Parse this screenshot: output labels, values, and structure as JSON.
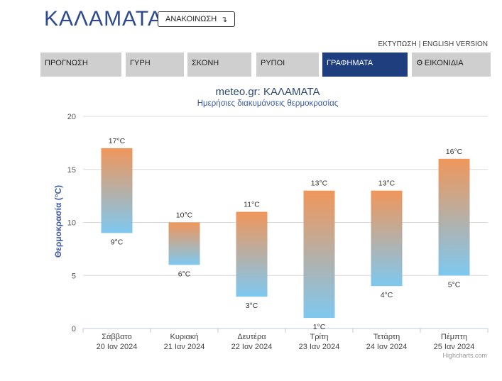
{
  "header": {
    "city": "ΚΑΛΑΜΑΤΑ",
    "announce_label": "ΑΝΑΚΟΙΝΩΣΗ",
    "announce_icon": "arrow-return-icon"
  },
  "top_links": {
    "print": "ΕΚΤΥΠΩΣΗ",
    "separator": "|",
    "english": "ENGLISH VERSION"
  },
  "nav": {
    "tabs": [
      {
        "label": "ΠΡΟΓΝΩΣΗ",
        "active": false
      },
      {
        "label": "ΓΥΡΗ",
        "active": false
      },
      {
        "label": "ΣΚΟΝΗ",
        "active": false
      },
      {
        "label": "ΡΥΠΟΙ",
        "active": false
      },
      {
        "label": "ΓΡΑΦΗΜΑΤΑ",
        "active": true
      },
      {
        "label": "ΕΙΚΟΝΙΔΙΑ",
        "active": false,
        "icon": "gear-icon"
      }
    ]
  },
  "chart_data": {
    "type": "bar",
    "subtype": "columnrange",
    "title": "meteo.gr: ΚΑΛΑΜΑΤΑ",
    "subtitle": "Ημερήσιες διακυμάνσεις θερμοκρασίας",
    "ylabel": "Θερμοκρασία (°C)",
    "ylim": [
      0,
      20
    ],
    "yticks": [
      0,
      5,
      10,
      15,
      20
    ],
    "grid": true,
    "unit": "°C",
    "categories": [
      {
        "day": "Σάββατο",
        "date": "20 Ιαν 2024"
      },
      {
        "day": "Κυριακή",
        "date": "21 Ιαν 2024"
      },
      {
        "day": "Δευτέρα",
        "date": "22 Ιαν 2024"
      },
      {
        "day": "Τρίτη",
        "date": "23 Ιαν 2024"
      },
      {
        "day": "Τετάρτη",
        "date": "24 Ιαν 2024"
      },
      {
        "day": "Πέμπτη",
        "date": "25 Ιαν 2024"
      }
    ],
    "low": [
      9,
      6,
      3,
      1,
      4,
      5
    ],
    "high": [
      17,
      10,
      11,
      13,
      13,
      16
    ],
    "colors": {
      "top": "#f0965a",
      "bottom": "#7ec8f0",
      "grid": "#d8d8d8",
      "title": "#2f4a6e",
      "subtitle": "#3d5aa0",
      "ylabel": "#3d5aa0"
    },
    "credits": "Highcharts.com"
  }
}
